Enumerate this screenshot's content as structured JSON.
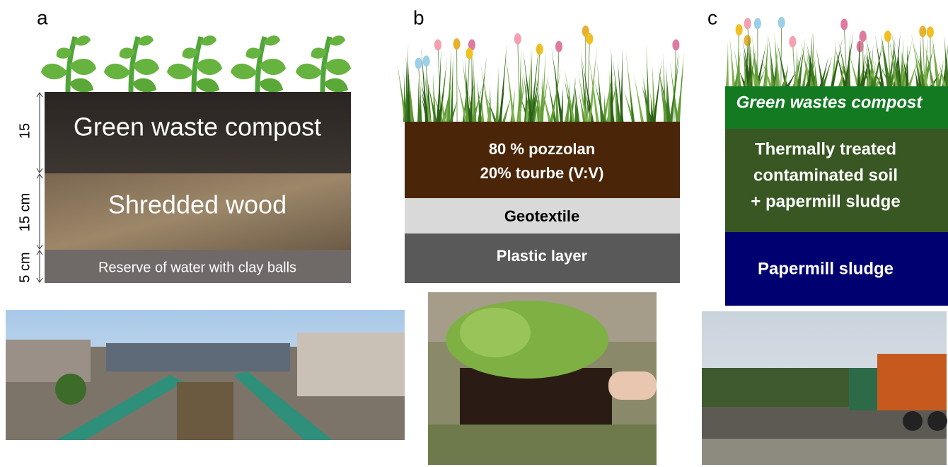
{
  "panels": [
    {
      "label": "a",
      "layers": [
        [
          "Green waste compost"
        ],
        [
          "Shredded wood"
        ],
        [
          "Reserve of water with clay balls"
        ]
      ],
      "depths": [
        "15",
        "15 cm",
        "5 cm"
      ]
    },
    {
      "label": "b",
      "layers": [
        [
          "80 % pozzolan",
          "20% tourbe (V:V)"
        ],
        [
          "Geotextile"
        ],
        [
          "Plastic layer"
        ]
      ]
    },
    {
      "label": "c",
      "layers": [
        [
          "Green wastes compost"
        ],
        [
          "Thermally treated",
          "contaminated soil",
          "+ papermill sludge"
        ],
        [
          "Papermill sludge"
        ]
      ]
    }
  ]
}
